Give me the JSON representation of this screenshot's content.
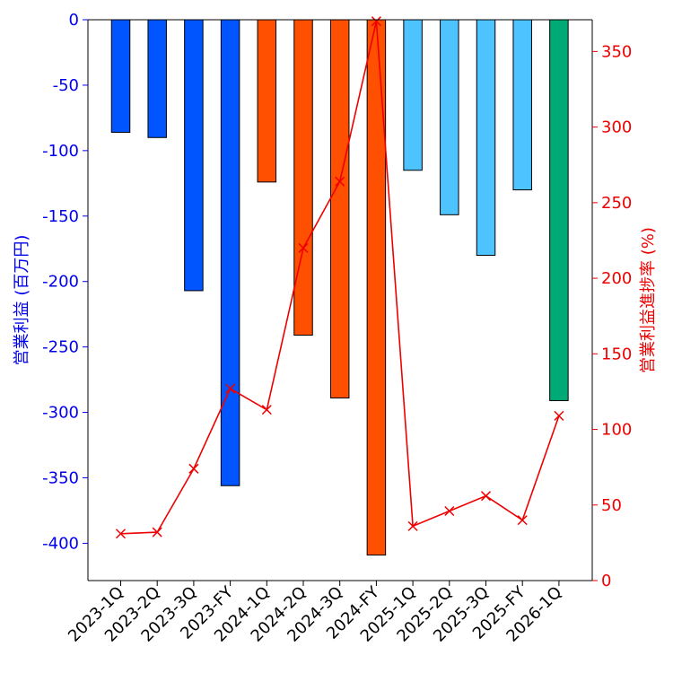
{
  "chart_data": {
    "type": "bar",
    "title": "",
    "xlabel": "",
    "categories": [
      "2023-1Q",
      "2023-2Q",
      "2023-3Q",
      "2023-FY",
      "2024-1Q",
      "2024-2Q",
      "2024-3Q",
      "2024-FY",
      "2025-1Q",
      "2025-2Q",
      "2025-3Q",
      "2025-FY",
      "2026-1Q"
    ],
    "series": [
      {
        "name": "営業利益 (百万円)",
        "axis": "left",
        "type": "bar",
        "values": [
          -86,
          -90,
          -207,
          -356,
          -124,
          -241,
          -289,
          -409,
          -115,
          -149,
          -180,
          -130,
          -291
        ],
        "colors": [
          "#0055ff",
          "#0055ff",
          "#0055ff",
          "#0055ff",
          "#ff4f00",
          "#ff4f00",
          "#ff4f00",
          "#ff4f00",
          "#4dc3ff",
          "#4dc3ff",
          "#4dc3ff",
          "#4dc3ff",
          "#00aa77"
        ]
      },
      {
        "name": "営業利益進捗率 (%)",
        "axis": "right",
        "type": "line",
        "marker": "x",
        "color": "#ee0000",
        "values": [
          31,
          32,
          74,
          127,
          113,
          220,
          264,
          370,
          36,
          46,
          56,
          40,
          109
        ]
      }
    ],
    "ylabel": "営業利益 (百万円)",
    "ylabel_right": "営業利益進捗率 (%)",
    "ylim": [
      -428.5,
      0
    ],
    "ylim_right": [
      0,
      371
    ],
    "yticks": [
      0,
      -50,
      -100,
      -150,
      -200,
      -250,
      -300,
      -350,
      -400
    ],
    "ytick_labels": [
      "0",
      "-50",
      "-100",
      "-150",
      "-200",
      "-250",
      "-300",
      "-350",
      "-400"
    ],
    "yticks_right": [
      0,
      50,
      100,
      150,
      200,
      250,
      300,
      350
    ],
    "ytick_labels_right": [
      "0",
      "50",
      "100",
      "150",
      "200",
      "250",
      "300",
      "350"
    ],
    "left_axis_color": "#0000ee",
    "right_axis_color": "#ee0000",
    "grid": false
  }
}
